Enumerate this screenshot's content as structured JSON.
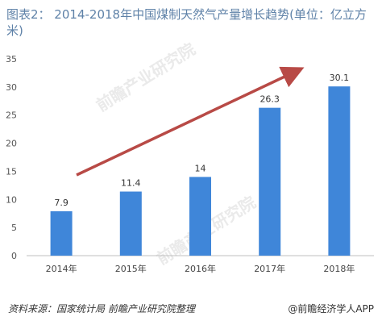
{
  "header": {
    "title": "图表2：  2014-2018年中国煤制天然气产量增长趋势(单位：亿立方米)"
  },
  "watermark": "前瞻产业研究院",
  "footer": {
    "source": "资料来源：国家统计局 前瞻产业研究院整理",
    "credit": "@前瞻经济学人APP"
  },
  "colors": {
    "bar": "#3f86d9",
    "arrow": "#b84a46",
    "title": "#5f82a8"
  },
  "chart_data": {
    "type": "bar",
    "categories": [
      "2014年",
      "2015年",
      "2016年",
      "2017年",
      "2018年"
    ],
    "values": [
      7.9,
      11.4,
      14,
      26.3,
      30.1
    ],
    "value_labels": [
      "7.9",
      "11.4",
      "14",
      "26.3",
      "30.1"
    ],
    "yticks": [
      0,
      5,
      10,
      15,
      20,
      25,
      30,
      35
    ],
    "ylim": [
      0,
      35
    ],
    "grid": false,
    "legend": "none",
    "annotations": [
      "trend-arrow"
    ]
  }
}
